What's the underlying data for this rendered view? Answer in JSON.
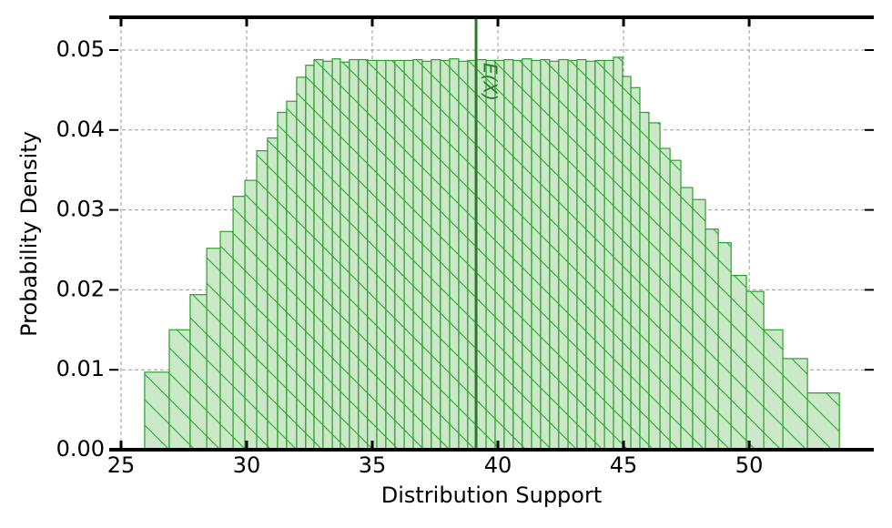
{
  "chart_data": {
    "type": "histogram",
    "xlabel": "Distribution Support",
    "ylabel": "Probability Density",
    "bins": [
      25.94,
      26.92,
      27.75,
      28.41,
      28.95,
      29.46,
      29.93,
      30.4,
      30.83,
      31.23,
      31.59,
      31.99,
      32.35,
      32.68,
      33.04,
      33.41,
      33.73,
      34.09,
      34.45,
      34.81,
      35.18,
      35.54,
      35.9,
      36.27,
      36.63,
      36.99,
      37.35,
      37.71,
      38.08,
      38.44,
      38.8,
      39.16,
      39.53,
      39.89,
      40.25,
      40.61,
      40.97,
      41.34,
      41.7,
      42.06,
      42.42,
      42.79,
      43.15,
      43.51,
      43.87,
      44.24,
      44.6,
      44.96,
      45.29,
      45.65,
      46.01,
      46.45,
      46.85,
      47.28,
      47.75,
      48.26,
      48.77,
      49.28,
      49.89,
      50.58,
      51.34,
      52.32,
      53.59
    ],
    "values": [
      0.0097,
      0.015,
      0.0194,
      0.0252,
      0.0273,
      0.0317,
      0.0337,
      0.0374,
      0.039,
      0.0422,
      0.0436,
      0.0466,
      0.0481,
      0.0488,
      0.0486,
      0.0489,
      0.0485,
      0.0488,
      0.0488,
      0.0487,
      0.0487,
      0.0487,
      0.0487,
      0.0487,
      0.0488,
      0.0486,
      0.0488,
      0.0487,
      0.0489,
      0.0486,
      0.0487,
      0.0488,
      0.0487,
      0.0487,
      0.0488,
      0.0487,
      0.0489,
      0.0487,
      0.0488,
      0.0486,
      0.0488,
      0.0487,
      0.0488,
      0.0486,
      0.0487,
      0.0487,
      0.0491,
      0.0467,
      0.0453,
      0.0422,
      0.0409,
      0.0377,
      0.0362,
      0.0328,
      0.0313,
      0.0276,
      0.0259,
      0.0218,
      0.0198,
      0.015,
      0.0114,
      0.0071
    ],
    "color": "#2ca02c",
    "fill": "#cbe8c9",
    "vline": {
      "x": 39.13,
      "label": "E(X)",
      "color": "#2a7a2a"
    },
    "xlim": [
      24.53,
      54.96
    ],
    "ylim": [
      0,
      0.0541
    ],
    "xticks": [
      25,
      30,
      35,
      40,
      45,
      50
    ],
    "yticks": [
      {
        "value": 0,
        "label": "0.00"
      },
      {
        "value": 0.01,
        "label": "0.01"
      },
      {
        "value": 0.02,
        "label": "0.02"
      },
      {
        "value": 0.03,
        "label": "0.03"
      },
      {
        "value": 0.04,
        "label": "0.04"
      },
      {
        "value": 0.05,
        "label": "0.05"
      }
    ],
    "grid": true
  }
}
